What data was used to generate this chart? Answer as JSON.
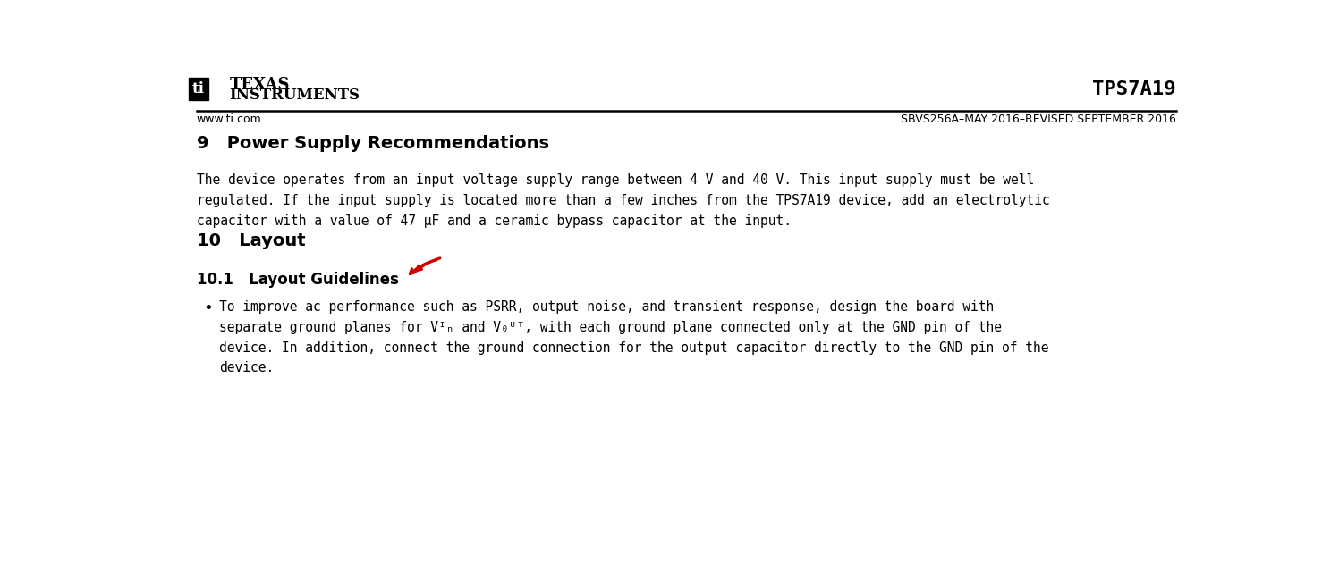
{
  "bg_color": "#ffffff",
  "product_name": "TPS7A19",
  "doc_ref": "SBVS256A–MAY 2016–REVISED SEPTEMBER 2016",
  "website": "www.ti.com",
  "section9_title": "9   Power Supply Recommendations",
  "section9_body_line1": "The device operates from an input voltage supply range between 4 V and 40 V. This input supply must be well",
  "section9_body_line2": "regulated. If the input supply is located more than a few inches from the TPS7A19 device, add an electrolytic",
  "section9_body_line3": "capacitor with a value of 47 μF and a ceramic bypass capacitor at the input.",
  "section10_title": "10   Layout",
  "section101_title": "10.1   Layout Guidelines",
  "bullet_line1": "To improve ac performance such as PSRR, output noise, and transient response, design the board with",
  "bullet_line2": "separate ground planes for Vᴵₙ and V₀ᵁᵀ, with each ground plane connected only at the GND pin of the",
  "bullet_line3": "device. In addition, connect the ground connection for the output capacitor directly to the GND pin of the",
  "bullet_line4": "device.",
  "arrow_color": "#cc0000"
}
